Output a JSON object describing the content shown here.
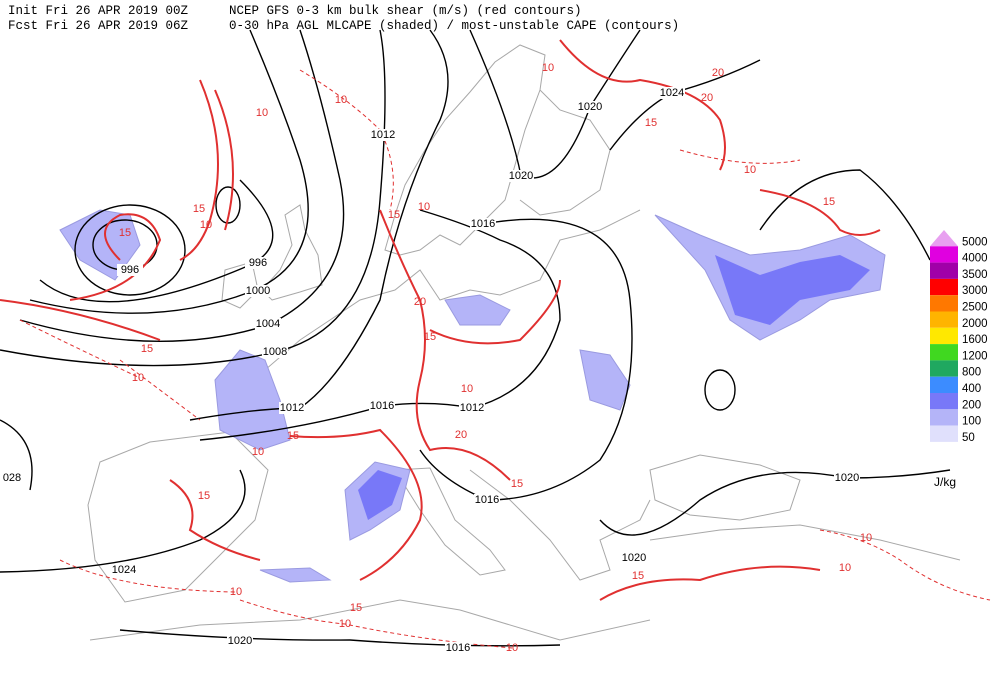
{
  "header": {
    "init": "Init  Fri 26 APR 2019 00Z",
    "fcst": "Fcst Fri 26 APR 2019 06Z",
    "title": "NCEP GFS 0-3 km bulk shear (m/s) (red contours)",
    "subtitle": "0-30 hPa AGL MLCAPE (shaded) / most-unstable CAPE (contours)"
  },
  "legend": {
    "levels": [
      {
        "label": "5000",
        "color": "#e8a0f0"
      },
      {
        "label": "4000",
        "color": "#e000e0"
      },
      {
        "label": "3500",
        "color": "#a000a8"
      },
      {
        "label": "3000",
        "color": "#ff0000"
      },
      {
        "label": "2500",
        "color": "#ff7800"
      },
      {
        "label": "2000",
        "color": "#ffb400"
      },
      {
        "label": "1600",
        "color": "#ffe800"
      },
      {
        "label": "1200",
        "color": "#40d820"
      },
      {
        "label": "800",
        "color": "#20a860"
      },
      {
        "label": "400",
        "color": "#3c8cff"
      },
      {
        "label": "200",
        "color": "#7878f8"
      },
      {
        "label": "100",
        "color": "#b4b4f8"
      },
      {
        "label": "50",
        "color": "#e0e0fc"
      }
    ],
    "unit": "J/kg"
  },
  "map": {
    "isobar_labels": [
      "996",
      "996",
      "1000",
      "1004",
      "1008",
      "1012",
      "1012",
      "1016",
      "1012",
      "1016",
      "1016",
      "1020",
      "1020",
      "1024",
      "1020",
      "1020",
      "1024",
      "1020",
      "1016",
      "028"
    ],
    "shear_labels": [
      "10",
      "20",
      "20",
      "15",
      "10",
      "15",
      "10",
      "10",
      "15",
      "10",
      "15",
      "15",
      "10",
      "20",
      "15",
      "15",
      "10",
      "15",
      "10",
      "20",
      "10",
      "15",
      "15",
      "10",
      "10",
      "15",
      "15",
      "10",
      "10",
      "10"
    ]
  }
}
